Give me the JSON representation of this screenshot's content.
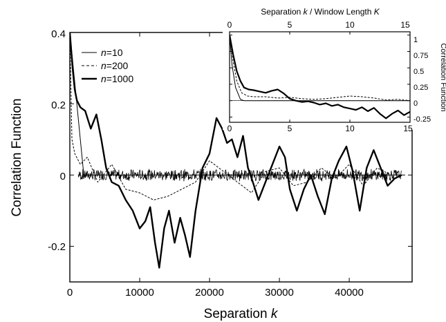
{
  "chart_data": [
    {
      "type": "line",
      "title": "",
      "xlabel": "Separation k",
      "ylabel": "Correlation Function",
      "xlim": [
        0,
        49000
      ],
      "ylim": [
        -0.3,
        0.4
      ],
      "x_ticks": [
        0,
        10000,
        20000,
        30000,
        40000
      ],
      "x_tick_labels": [
        "0",
        "10000",
        "20000",
        "30000",
        "40000"
      ],
      "y_ticks": [
        -0.2,
        0,
        0.2,
        0.4
      ],
      "y_tick_labels": [
        "-0.2",
        "0",
        "0.2",
        "0.4"
      ],
      "legend_position": "top-left",
      "series": [
        {
          "name": "n=10",
          "style": "solid-thin",
          "x": [
            0,
            2000,
            6000,
            12000,
            20000,
            28000,
            36000,
            44000,
            48000
          ],
          "y": [
            0.4,
            0.0,
            0.0,
            0.0,
            0.0,
            0.0,
            0.0,
            0.0,
            0.0
          ]
        },
        {
          "name": "n=200",
          "style": "dashed",
          "x": [
            0,
            300,
            700,
            1500,
            2500,
            4000,
            6000,
            8000,
            10000,
            12000,
            14000,
            16000,
            18000,
            20000,
            22000,
            24000,
            26000,
            28000,
            30000,
            32000,
            34000,
            36000,
            38000,
            40000,
            42000,
            44000,
            46000
          ],
          "y": [
            0.4,
            0.1,
            0.06,
            0.03,
            0.05,
            -0.02,
            0.03,
            -0.04,
            -0.05,
            -0.07,
            -0.06,
            -0.04,
            -0.02,
            0.04,
            0.01,
            -0.02,
            -0.05,
            0.01,
            0.02,
            -0.03,
            -0.02,
            0.02,
            -0.01,
            0.03,
            -0.03,
            0.02,
            0.0
          ]
        },
        {
          "name": "n=1000",
          "style": "solid-thick",
          "x": [
            0,
            400,
            700,
            1000,
            1500,
            2200,
            3000,
            3800,
            4500,
            5200,
            6000,
            7000,
            8000,
            9000,
            10000,
            10800,
            11500,
            12200,
            12800,
            13500,
            14200,
            15000,
            15800,
            16500,
            17200,
            18000,
            19000,
            20000,
            21000,
            21800,
            22500,
            23200,
            24000,
            24800,
            25500,
            26200,
            27000,
            28000,
            29000,
            30000,
            30800,
            31500,
            32500,
            33500,
            34500,
            35500,
            36500,
            37500,
            38500,
            39600,
            40500,
            41500,
            42500,
            43500,
            44500,
            45500,
            46500,
            47500
          ],
          "y": [
            0.4,
            0.3,
            0.24,
            0.21,
            0.19,
            0.18,
            0.13,
            0.17,
            0.1,
            0.02,
            -0.02,
            -0.03,
            -0.07,
            -0.1,
            -0.15,
            -0.13,
            -0.09,
            -0.19,
            -0.26,
            -0.15,
            -0.1,
            -0.19,
            -0.12,
            -0.17,
            -0.23,
            -0.1,
            0.02,
            0.06,
            0.16,
            0.13,
            0.09,
            0.1,
            0.05,
            0.11,
            0.02,
            -0.02,
            -0.07,
            -0.02,
            0.03,
            0.08,
            0.05,
            -0.04,
            -0.1,
            -0.04,
            0.0,
            -0.06,
            -0.11,
            -0.01,
            0.04,
            0.08,
            0.01,
            -0.1,
            0.02,
            0.07,
            0.02,
            -0.03,
            -0.01,
            0.0
          ]
        }
      ]
    },
    {
      "type": "line",
      "title": "",
      "xlabel": "Separation k / Window Length K",
      "ylabel": "Correlation Function",
      "xlim": [
        0,
        15
      ],
      "ylim": [
        -0.33,
        1.05
      ],
      "x_ticks": [
        0,
        5,
        10,
        15
      ],
      "x_tick_labels": [
        "0",
        "5",
        "10",
        "15"
      ],
      "y_ticks": [
        -0.25,
        0,
        0.25,
        0.5,
        0.75,
        1
      ],
      "y_tick_labels": [
        "-0.25",
        "0",
        "0.25",
        "0.5",
        "0.75",
        "1"
      ],
      "series": [
        {
          "name": "n=10",
          "style": "solid-thin",
          "x": [
            0,
            0.2,
            0.5,
            0.9,
            1.2,
            2,
            5,
            10,
            15
          ],
          "y": [
            1,
            0.55,
            0.2,
            0.02,
            0.0,
            0.0,
            0.0,
            0.0,
            0.0
          ]
        },
        {
          "name": "n=200",
          "style": "dashed",
          "x": [
            0,
            0.3,
            0.6,
            1.0,
            1.5,
            2,
            3,
            4,
            5,
            6,
            7,
            8,
            9,
            10,
            11,
            12,
            13,
            14,
            15
          ],
          "y": [
            1,
            0.6,
            0.3,
            0.12,
            0.07,
            0.06,
            0.06,
            0.04,
            0.05,
            0.03,
            0.02,
            0.03,
            0.05,
            0.07,
            0.06,
            0.04,
            0.01,
            0.02,
            0.0
          ]
        },
        {
          "name": "n=1000",
          "style": "solid-thick",
          "x": [
            0,
            0.3,
            0.6,
            0.9,
            1.2,
            1.6,
            2.0,
            2.5,
            3.0,
            3.5,
            4.0,
            4.5,
            5.0,
            5.5,
            6.0,
            6.5,
            7.0,
            7.5,
            8.0,
            8.5,
            9.0,
            9.5,
            10.0,
            10.5,
            11.0,
            11.5,
            12.0,
            12.5,
            13.0,
            13.5,
            14.0,
            14.5,
            15.0
          ],
          "y": [
            1,
            0.7,
            0.45,
            0.3,
            0.2,
            0.17,
            0.16,
            0.14,
            0.12,
            0.15,
            0.17,
            0.11,
            0.03,
            0.0,
            -0.02,
            -0.01,
            -0.03,
            -0.06,
            -0.04,
            -0.08,
            -0.06,
            -0.1,
            -0.12,
            -0.14,
            -0.1,
            -0.16,
            -0.11,
            -0.2,
            -0.27,
            -0.2,
            -0.15,
            -0.22,
            -0.17
          ]
        }
      ]
    }
  ]
}
